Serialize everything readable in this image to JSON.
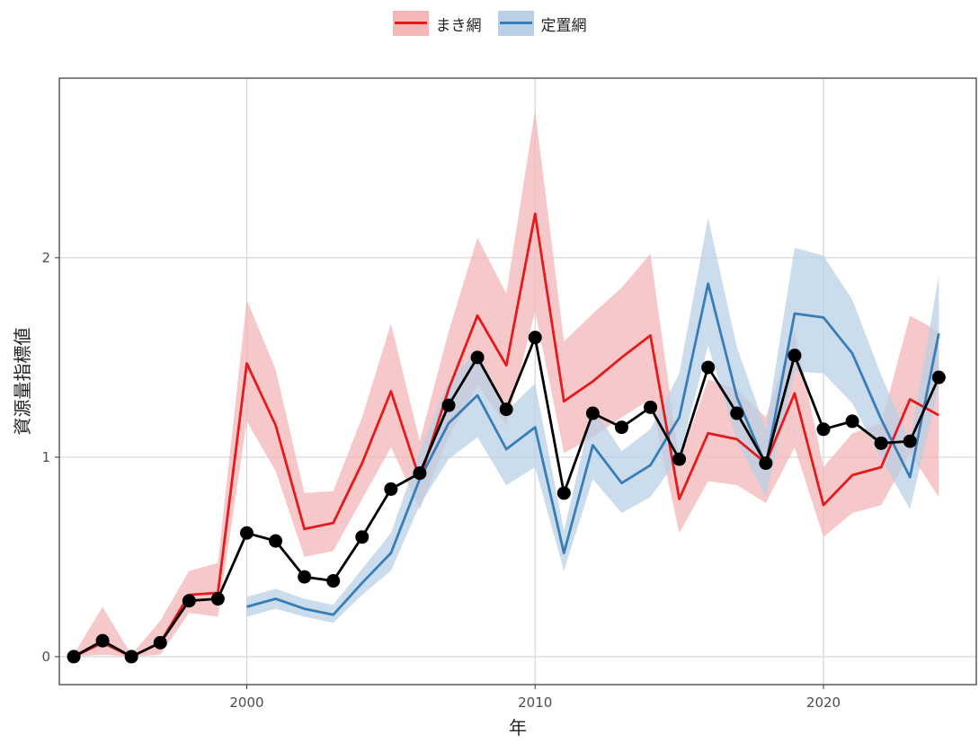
{
  "chart_data": {
    "type": "line",
    "xlabel": "年",
    "ylabel": "資源量指標値",
    "xlim": [
      1993.5,
      2025.3
    ],
    "ylim": [
      -0.14,
      2.9
    ],
    "x_ticks": [
      2000,
      2010,
      2020
    ],
    "y_ticks": [
      0,
      1,
      2
    ],
    "grid": true,
    "legend_position": "top",
    "series": [
      {
        "name": "まき網",
        "color": "#e41a1c",
        "band_color": "#f4b6b7",
        "x": [
          1994,
          1995,
          1996,
          1997,
          1998,
          1999,
          2000,
          2001,
          2002,
          2003,
          2004,
          2005,
          2006,
          2007,
          2008,
          2009,
          2010,
          2011,
          2012,
          2013,
          2014,
          2015,
          2016,
          2017,
          2018,
          2019,
          2020,
          2021,
          2022,
          2023,
          2024
        ],
        "values": [
          0.0,
          0.07,
          0.0,
          0.07,
          0.31,
          0.32,
          1.47,
          1.16,
          0.64,
          0.67,
          0.97,
          1.33,
          0.89,
          1.34,
          1.71,
          1.46,
          2.22,
          1.28,
          1.38,
          1.5,
          1.61,
          0.79,
          1.12,
          1.09,
          0.97,
          1.32,
          0.76,
          0.91,
          0.95,
          1.29,
          1.21
        ],
        "lower": [
          0.0,
          0.01,
          0.0,
          0.01,
          0.22,
          0.2,
          1.18,
          0.93,
          0.5,
          0.53,
          0.79,
          1.05,
          0.74,
          1.1,
          1.36,
          1.16,
          1.73,
          1.02,
          1.1,
          1.2,
          1.29,
          0.62,
          0.88,
          0.86,
          0.77,
          1.05,
          0.6,
          0.72,
          0.76,
          1.02,
          0.8
        ],
        "upper": [
          0.01,
          0.25,
          0.01,
          0.18,
          0.43,
          0.47,
          1.79,
          1.44,
          0.82,
          0.83,
          1.2,
          1.67,
          1.08,
          1.63,
          2.1,
          1.82,
          2.74,
          1.58,
          1.72,
          1.85,
          2.02,
          0.98,
          1.39,
          1.34,
          1.2,
          1.63,
          0.95,
          1.12,
          1.17,
          1.71,
          1.63
        ]
      },
      {
        "name": "定置網",
        "color": "#377eb8",
        "band_color": "#b9d0e6",
        "x": [
          2000,
          2001,
          2002,
          2003,
          2004,
          2005,
          2006,
          2007,
          2008,
          2009,
          2010,
          2011,
          2012,
          2013,
          2014,
          2015,
          2016,
          2017,
          2018,
          2019,
          2020,
          2021,
          2022,
          2023,
          2024
        ],
        "values": [
          0.25,
          0.29,
          0.24,
          0.21,
          0.37,
          0.52,
          0.89,
          1.17,
          1.31,
          1.04,
          1.15,
          0.52,
          1.06,
          0.87,
          0.96,
          1.2,
          1.87,
          1.3,
          0.96,
          1.72,
          1.7,
          1.52,
          1.19,
          0.9,
          1.62
        ],
        "lower": [
          0.2,
          0.24,
          0.2,
          0.17,
          0.31,
          0.43,
          0.76,
          0.99,
          1.1,
          0.86,
          0.95,
          0.43,
          0.89,
          0.72,
          0.8,
          1.0,
          1.56,
          1.08,
          0.8,
          1.43,
          1.42,
          1.27,
          0.99,
          0.74,
          1.35
        ],
        "upper": [
          0.3,
          0.34,
          0.29,
          0.26,
          0.44,
          0.62,
          1.03,
          1.38,
          1.54,
          1.23,
          1.37,
          0.63,
          1.25,
          1.03,
          1.14,
          1.42,
          2.2,
          1.55,
          1.14,
          2.05,
          2.01,
          1.79,
          1.41,
          1.08,
          1.91
        ]
      },
      {
        "name": "",
        "color": "#000000",
        "x": [
          1994,
          1995,
          1996,
          1997,
          1998,
          1999,
          2000,
          2001,
          2002,
          2003,
          2004,
          2005,
          2006,
          2007,
          2008,
          2009,
          2010,
          2011,
          2012,
          2013,
          2014,
          2015,
          2016,
          2017,
          2018,
          2019,
          2020,
          2021,
          2022,
          2023,
          2024
        ],
        "values": [
          0.0,
          0.08,
          -0.0,
          0.07,
          0.28,
          0.29,
          0.62,
          0.58,
          0.4,
          0.38,
          0.6,
          0.84,
          0.92,
          1.26,
          1.5,
          1.24,
          1.6,
          0.82,
          1.22,
          1.15,
          1.25,
          0.99,
          1.45,
          1.22,
          0.97,
          1.51,
          1.14,
          1.18,
          1.07,
          1.08,
          1.4
        ],
        "markers": true
      }
    ]
  }
}
